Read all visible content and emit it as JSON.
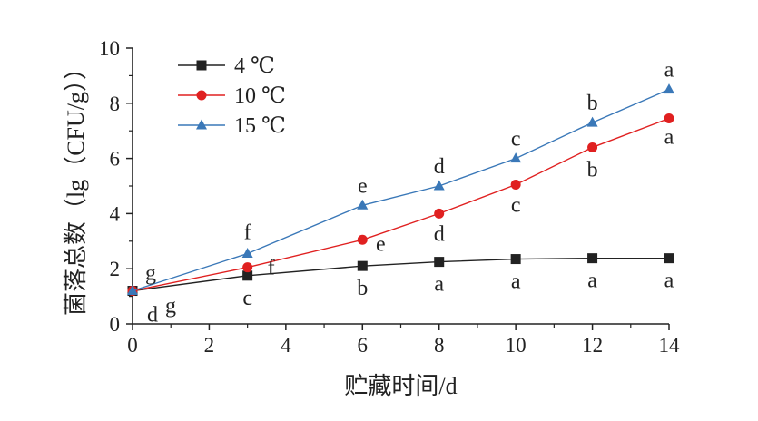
{
  "chart_data": {
    "type": "line",
    "title": "",
    "xlabel": "贮藏时间/d",
    "ylabel": "菌落总数（lg（CFU/g））",
    "x": [
      0,
      3,
      6,
      8,
      10,
      12,
      14
    ],
    "xlim": [
      0,
      14
    ],
    "ylim": [
      0,
      10
    ],
    "xticks": [
      "0",
      "2",
      "4",
      "6",
      "8",
      "10",
      "12",
      "14"
    ],
    "yticks": [
      "0",
      "2",
      "4",
      "6",
      "8",
      "10"
    ],
    "grid": false,
    "legend_position": "top-left",
    "series": [
      {
        "name": "4 ℃",
        "color": "#222222",
        "marker": "square",
        "values": [
          1.2,
          1.75,
          2.1,
          2.25,
          2.35,
          2.38,
          2.38
        ],
        "letters": [
          "d",
          "c",
          "b",
          "a",
          "a",
          "a",
          "a"
        ]
      },
      {
        "name": "10 ℃",
        "color": "#e02020",
        "marker": "circle",
        "values": [
          1.2,
          2.05,
          3.05,
          4.0,
          5.05,
          6.4,
          7.45
        ],
        "letters": [
          "g",
          "f",
          "e",
          "d",
          "c",
          "b",
          "a"
        ]
      },
      {
        "name": "15 ℃",
        "color": "#3a78b8",
        "marker": "triangle",
        "values": [
          1.2,
          2.55,
          4.3,
          5.0,
          6.0,
          7.3,
          8.5
        ],
        "letters": [
          "g",
          "f",
          "e",
          "d",
          "c",
          "b",
          "a"
        ]
      }
    ]
  }
}
